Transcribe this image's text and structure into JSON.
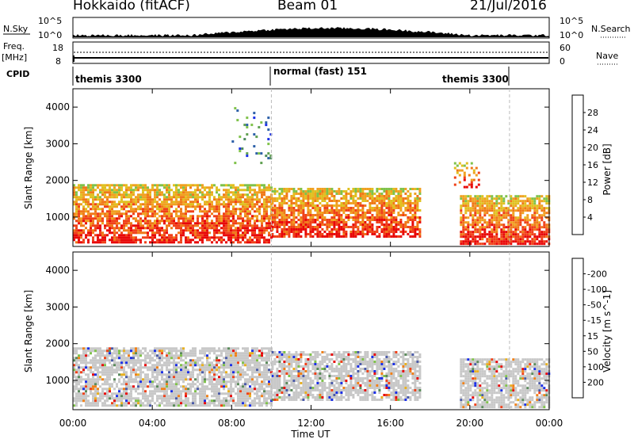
{
  "header": {
    "title": "Hokkaido (fitACF)",
    "beam": "Beam 01",
    "date": "21/Jul/2016"
  },
  "top_panels": {
    "nsky_label": "N.Sky",
    "nsky_ticks": [
      "10^5",
      "10^0"
    ],
    "nsearch_label": "N.Search",
    "freq_label": "Freq.",
    "freq_unit": "[MHz]",
    "freq_ticks": [
      "18",
      "8"
    ],
    "nave_label": "Nave",
    "nave_ticks": [
      "60",
      "0"
    ],
    "cpid_label": "CPID",
    "cpid_segments": [
      "themis 3300",
      "normal (fast) 151",
      "themis 3300"
    ]
  },
  "colors": {
    "power": [
      "#1a2ee6",
      "#2b5fa8",
      "#4a8a5a",
      "#5fa050",
      "#7fc24a",
      "#e0c020",
      "#f0a020",
      "#f07818",
      "#f04018",
      "#e80808"
    ],
    "velocity": [
      "#1a2ee6",
      "#4a5aa8",
      "#5a8a5a",
      "#7fc24a",
      "#c8c8c8",
      "#c8c8c8",
      "#e8b020",
      "#f08018",
      "#f04018",
      "#e80808"
    ],
    "ground_scatter": "#c8c8c8"
  },
  "chart_data": [
    {
      "type": "heatmap",
      "name": "power",
      "xlabel": "Time UT",
      "ylabel": "Slant Range [km]",
      "xlim": [
        0,
        24
      ],
      "ylim": [
        200,
        4500
      ],
      "x_ticks": [
        "00:00",
        "04:00",
        "08:00",
        "12:00",
        "16:00",
        "20:00",
        "00:00"
      ],
      "y_ticks": [
        "1000",
        "2000",
        "3000",
        "4000"
      ],
      "colorbar_label": "Power [dB]",
      "colorbar_ticks": [
        "4",
        "8",
        "12",
        "16",
        "20",
        "24",
        "28"
      ],
      "echo_regions": [
        {
          "t_start": 0.0,
          "t_end": 10.0,
          "range_start": 300,
          "range_end": 1900,
          "level": "high"
        },
        {
          "t_start": 10.0,
          "t_end": 17.5,
          "range_start": 500,
          "range_end": 1800,
          "level": "high"
        },
        {
          "t_start": 19.5,
          "t_end": 24.0,
          "range_start": 300,
          "range_end": 1600,
          "level": "high"
        },
        {
          "t_start": 8.0,
          "t_end": 10.0,
          "range_start": 2500,
          "range_end": 4000,
          "level": "low"
        },
        {
          "t_start": 19.2,
          "t_end": 20.5,
          "range_start": 1800,
          "range_end": 2500,
          "level": "medium"
        }
      ]
    },
    {
      "type": "heatmap",
      "name": "velocity",
      "xlabel": "Time UT",
      "ylabel": "Slant Range [km]",
      "xlim": [
        0,
        24
      ],
      "ylim": [
        200,
        4500
      ],
      "x_ticks": [
        "00:00",
        "04:00",
        "08:00",
        "12:00",
        "16:00",
        "20:00",
        "00:00"
      ],
      "y_ticks": [
        "1000",
        "2000",
        "3000",
        "4000"
      ],
      "colorbar_label": "Velocity [m s^-1]",
      "colorbar_ticks": [
        "200",
        "100",
        "50",
        "15",
        "-15",
        "-50",
        "-100",
        "-200"
      ],
      "echo_regions": [
        {
          "t_start": 0.0,
          "t_end": 10.0,
          "range_start": 300,
          "range_end": 1900,
          "level": "ground"
        },
        {
          "t_start": 10.0,
          "t_end": 17.5,
          "range_start": 500,
          "range_end": 1800,
          "level": "ground"
        },
        {
          "t_start": 19.5,
          "t_end": 24.0,
          "range_start": 300,
          "range_end": 1600,
          "level": "ground"
        }
      ]
    }
  ]
}
